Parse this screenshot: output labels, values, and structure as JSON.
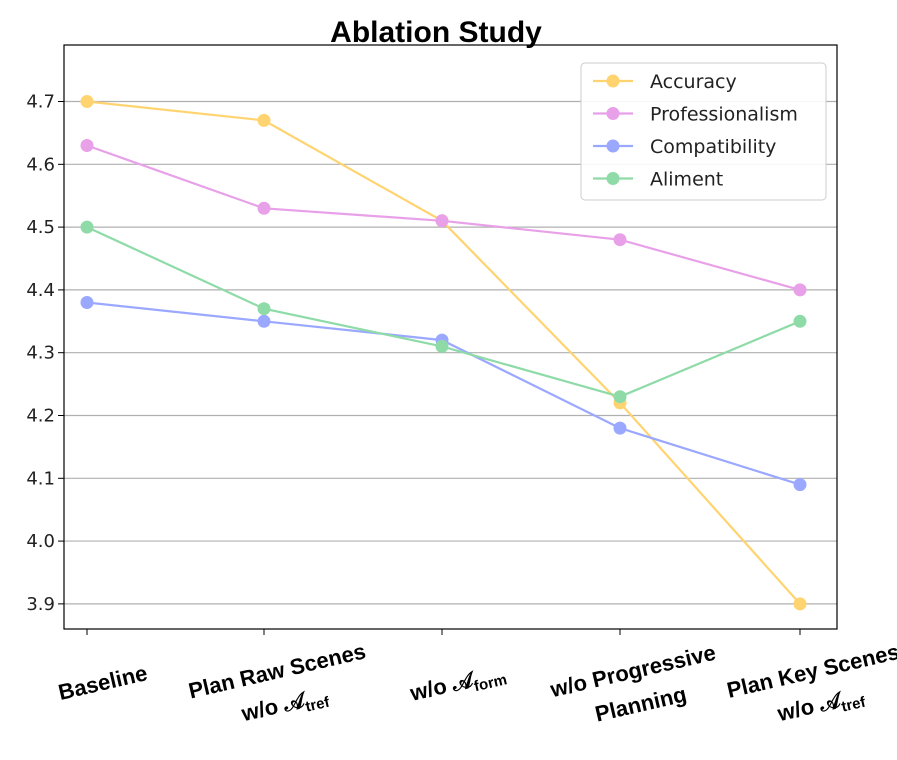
{
  "chart_data": {
    "type": "line",
    "title": "Ablation Study",
    "xlabel": "",
    "ylabel": "",
    "categories": [
      "Baseline",
      "Plan Raw Scenes w/o 𝒜tref",
      "w/o 𝒜form",
      "w/o Progressive Planning",
      "Plan Key Scenes w/o 𝒜tref"
    ],
    "category_lines": [
      [
        {
          "t": "Baseline"
        }
      ],
      [
        {
          "t": "Plan Raw Scenes"
        },
        {
          "t": "w/o 𝒜",
          "sub": "tref"
        }
      ],
      [
        {
          "t": "w/o 𝒜",
          "sub": "form"
        }
      ],
      [
        {
          "t": "w/o Progressive"
        },
        {
          "t": "Planning"
        }
      ],
      [
        {
          "t": "Plan Key Scenes"
        },
        {
          "t": "w/o 𝒜",
          "sub": "tref"
        }
      ]
    ],
    "ylim": [
      3.86,
      4.79
    ],
    "yticks": [
      "3.9",
      "4.0",
      "4.1",
      "4.2",
      "4.3",
      "4.4",
      "4.5",
      "4.6",
      "4.7"
    ],
    "grid": "horizontal",
    "legend_position": "top-right",
    "series": [
      {
        "name": "Accuracy",
        "color": "#ffd470",
        "values": [
          4.7,
          4.67,
          4.51,
          4.22,
          3.9
        ]
      },
      {
        "name": "Professionalism",
        "color": "#e8a0e8",
        "values": [
          4.63,
          4.53,
          4.51,
          4.48,
          4.4
        ]
      },
      {
        "name": "Compatibility",
        "color": "#9aa8ff",
        "values": [
          4.38,
          4.35,
          4.32,
          4.18,
          4.09
        ]
      },
      {
        "name": "Aliment",
        "color": "#8edba8",
        "values": [
          4.5,
          4.37,
          4.31,
          4.23,
          4.35
        ]
      }
    ]
  }
}
